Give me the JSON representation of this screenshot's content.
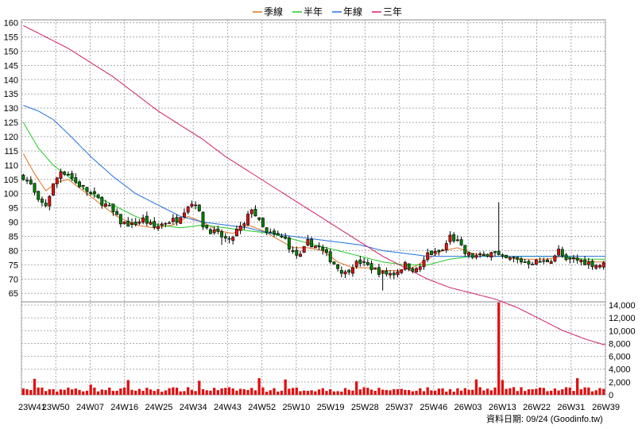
{
  "chart_data": {
    "type": "candlestick",
    "legend": [
      {
        "name": "季線",
        "color": "#e07020"
      },
      {
        "name": "半年",
        "color": "#22c822"
      },
      {
        "name": "年線",
        "color": "#2070e0"
      },
      {
        "name": "三年",
        "color": "#d0206a"
      }
    ],
    "price_axis": {
      "min": 62,
      "max": 161,
      "ticks": [
        160,
        155,
        150,
        145,
        140,
        135,
        130,
        125,
        120,
        115,
        110,
        105,
        100,
        95,
        90,
        85,
        80,
        75,
        70,
        65
      ]
    },
    "volume_axis": {
      "min": 0,
      "max": 14500,
      "ticks": [
        14000,
        12000,
        10000,
        8000,
        6000,
        4000,
        2000,
        0
      ],
      "tick_labels": [
        "14,000",
        "12,000",
        "10,000",
        "8,000",
        "6,000",
        "4,000",
        "2,000",
        "0"
      ]
    },
    "x_labels": [
      "23W41",
      "23W50",
      "24W07",
      "24W16",
      "24W25",
      "24W34",
      "24W43",
      "24W52",
      "25W10",
      "25W19",
      "25W28",
      "25W37",
      "25W46",
      "26W03",
      "26W13",
      "26W22",
      "26W31",
      "26W39"
    ],
    "weeks_total": 156,
    "ohlc_anchors": [
      {
        "w": 0,
        "c": 106
      },
      {
        "w": 2,
        "c": 103
      },
      {
        "w": 4,
        "c": 97
      },
      {
        "w": 6,
        "c": 96
      },
      {
        "w": 8,
        "c": 103
      },
      {
        "w": 10,
        "c": 108
      },
      {
        "w": 12,
        "c": 107
      },
      {
        "w": 14,
        "c": 104
      },
      {
        "w": 17,
        "c": 101
      },
      {
        "w": 20,
        "c": 98
      },
      {
        "w": 23,
        "c": 95
      },
      {
        "w": 26,
        "c": 90
      },
      {
        "w": 29,
        "c": 89
      },
      {
        "w": 32,
        "c": 91
      },
      {
        "w": 35,
        "c": 88
      },
      {
        "w": 38,
        "c": 90
      },
      {
        "w": 41,
        "c": 91
      },
      {
        "w": 44,
        "c": 96
      },
      {
        "w": 46,
        "c": 97
      },
      {
        "w": 48,
        "c": 89
      },
      {
        "w": 50,
        "c": 87
      },
      {
        "w": 53,
        "c": 85
      },
      {
        "w": 55,
        "c": 83
      },
      {
        "w": 57,
        "c": 87
      },
      {
        "w": 59,
        "c": 89
      },
      {
        "w": 61,
        "c": 95
      },
      {
        "w": 63,
        "c": 90
      },
      {
        "w": 65,
        "c": 86
      },
      {
        "w": 68,
        "c": 85
      },
      {
        "w": 70,
        "c": 84
      },
      {
        "w": 72,
        "c": 79
      },
      {
        "w": 74,
        "c": 78
      },
      {
        "w": 76,
        "c": 83
      },
      {
        "w": 79,
        "c": 81
      },
      {
        "w": 82,
        "c": 77
      },
      {
        "w": 84,
        "c": 74
      },
      {
        "w": 86,
        "c": 72
      },
      {
        "w": 88,
        "c": 75
      },
      {
        "w": 90,
        "c": 76
      },
      {
        "w": 93,
        "c": 74
      },
      {
        "w": 96,
        "c": 72
      },
      {
        "w": 99,
        "c": 72
      },
      {
        "w": 102,
        "c": 75
      },
      {
        "w": 105,
        "c": 73
      },
      {
        "w": 107,
        "c": 76
      },
      {
        "w": 108,
        "c": 79
      },
      {
        "w": 110,
        "c": 79
      },
      {
        "w": 112,
        "c": 80
      },
      {
        "w": 114,
        "c": 85
      },
      {
        "w": 116,
        "c": 83
      },
      {
        "w": 118,
        "c": 79
      },
      {
        "w": 120,
        "c": 78
      },
      {
        "w": 123,
        "c": 78
      },
      {
        "w": 125,
        "c": 80
      },
      {
        "w": 126,
        "c": 79
      },
      {
        "w": 128,
        "c": 77
      },
      {
        "w": 131,
        "c": 77
      },
      {
        "w": 134,
        "c": 76
      },
      {
        "w": 137,
        "c": 76
      },
      {
        "w": 139,
        "c": 76
      },
      {
        "w": 141,
        "c": 77
      },
      {
        "w": 143,
        "c": 80
      },
      {
        "w": 145,
        "c": 76
      },
      {
        "w": 147,
        "c": 77
      },
      {
        "w": 150,
        "c": 76
      },
      {
        "w": 153,
        "c": 75
      },
      {
        "w": 155,
        "c": 75
      }
    ],
    "ma_quarter": [
      [
        0,
        114
      ],
      [
        3,
        107
      ],
      [
        6,
        101
      ],
      [
        9,
        104
      ],
      [
        12,
        105
      ],
      [
        15,
        102
      ],
      [
        20,
        97
      ],
      [
        25,
        92
      ],
      [
        30,
        89
      ],
      [
        35,
        88
      ],
      [
        40,
        89
      ],
      [
        44,
        92
      ],
      [
        48,
        90
      ],
      [
        52,
        87
      ],
      [
        56,
        86
      ],
      [
        60,
        89
      ],
      [
        64,
        87
      ],
      [
        68,
        84
      ],
      [
        72,
        81
      ],
      [
        76,
        81
      ],
      [
        80,
        80
      ],
      [
        84,
        76
      ],
      [
        88,
        74
      ],
      [
        92,
        74
      ],
      [
        96,
        73
      ],
      [
        100,
        73
      ],
      [
        104,
        74
      ],
      [
        108,
        77
      ],
      [
        112,
        80
      ],
      [
        116,
        81
      ],
      [
        120,
        79
      ],
      [
        124,
        78
      ],
      [
        128,
        78
      ],
      [
        132,
        77
      ],
      [
        136,
        77
      ],
      [
        140,
        77
      ],
      [
        144,
        78
      ],
      [
        148,
        77
      ],
      [
        152,
        76
      ],
      [
        155,
        76
      ]
    ],
    "ma_halfyear": [
      [
        0,
        125
      ],
      [
        4,
        116
      ],
      [
        8,
        110
      ],
      [
        12,
        106
      ],
      [
        18,
        100
      ],
      [
        24,
        96
      ],
      [
        30,
        92
      ],
      [
        36,
        89
      ],
      [
        42,
        88
      ],
      [
        48,
        89
      ],
      [
        54,
        88
      ],
      [
        60,
        87
      ],
      [
        66,
        86
      ],
      [
        72,
        84
      ],
      [
        78,
        82
      ],
      [
        84,
        80
      ],
      [
        90,
        78
      ],
      [
        96,
        76
      ],
      [
        102,
        75
      ],
      [
        108,
        75
      ],
      [
        114,
        77
      ],
      [
        120,
        78
      ],
      [
        126,
        78
      ],
      [
        132,
        78
      ],
      [
        138,
        78
      ],
      [
        144,
        78
      ],
      [
        150,
        77
      ],
      [
        155,
        77
      ]
    ],
    "ma_year": [
      [
        0,
        131
      ],
      [
        4,
        129
      ],
      [
        8,
        126
      ],
      [
        12,
        121
      ],
      [
        18,
        113
      ],
      [
        24,
        106
      ],
      [
        30,
        100
      ],
      [
        36,
        96
      ],
      [
        42,
        92
      ],
      [
        48,
        90
      ],
      [
        54,
        89
      ],
      [
        60,
        88
      ],
      [
        66,
        86
      ],
      [
        72,
        85
      ],
      [
        78,
        84
      ],
      [
        84,
        83
      ],
      [
        90,
        82
      ],
      [
        96,
        80
      ],
      [
        102,
        79
      ],
      [
        108,
        78
      ],
      [
        114,
        78
      ],
      [
        120,
        78
      ],
      [
        126,
        78
      ],
      [
        132,
        78
      ],
      [
        138,
        78
      ],
      [
        144,
        78
      ],
      [
        150,
        78
      ],
      [
        155,
        78
      ]
    ],
    "ma_3year": [
      [
        0,
        159
      ],
      [
        6,
        155
      ],
      [
        12,
        151
      ],
      [
        18,
        146
      ],
      [
        24,
        141
      ],
      [
        30,
        135
      ],
      [
        36,
        129
      ],
      [
        42,
        124
      ],
      [
        48,
        119
      ],
      [
        54,
        113
      ],
      [
        60,
        108
      ],
      [
        66,
        103
      ],
      [
        72,
        98
      ],
      [
        78,
        93
      ],
      [
        84,
        88
      ],
      [
        90,
        83
      ],
      [
        96,
        78
      ],
      [
        102,
        74
      ],
      [
        108,
        70
      ],
      [
        114,
        67
      ],
      [
        120,
        65
      ],
      [
        126,
        63
      ],
      [
        132,
        60
      ],
      [
        138,
        56
      ],
      [
        144,
        52
      ],
      [
        150,
        49
      ],
      [
        155,
        47
      ]
    ],
    "spike_week": 127,
    "spike_price_high": 97,
    "spike_volume": 14400,
    "volume_base": 800,
    "source_text": "資料日期: 09/24  (Goodinfo.tw)"
  }
}
